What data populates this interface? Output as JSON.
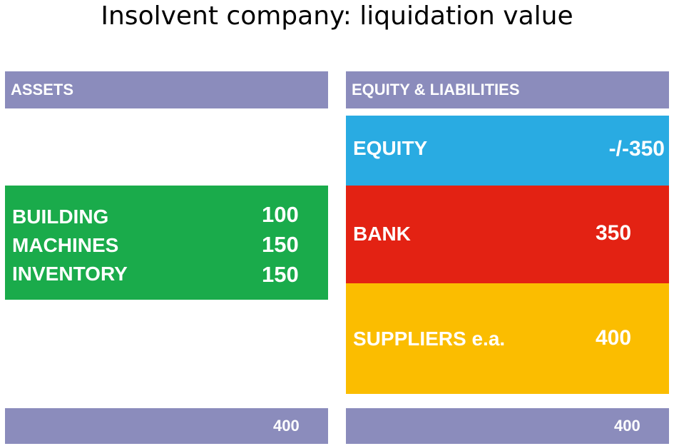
{
  "title": "Insolvent company: liquidation value",
  "assets": {
    "header": "ASSETS",
    "items": [
      {
        "label": "BUILDING",
        "value": "100"
      },
      {
        "label": "MACHINES",
        "value": "150"
      },
      {
        "label": "INVENTORY",
        "value": "150"
      }
    ],
    "total": "400"
  },
  "liabilities": {
    "header": "EQUITY & LIABILITIES",
    "items": [
      {
        "label": "EQUITY",
        "value": "-/-350"
      },
      {
        "label": "BANK",
        "value": "350"
      },
      {
        "label": "SUPPLIERS e.a.",
        "value": "400"
      }
    ],
    "total": "400"
  }
}
